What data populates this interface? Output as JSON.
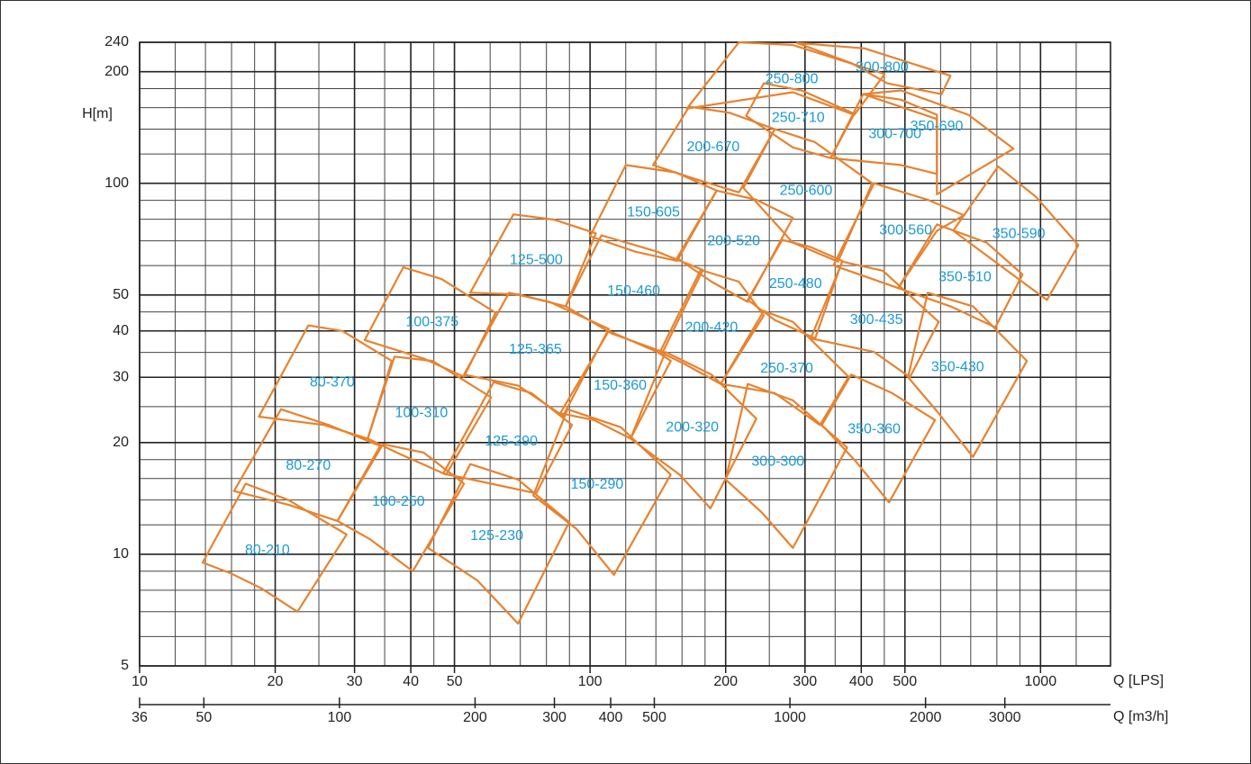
{
  "chart_data": {
    "type": "region-map",
    "y_label": "H[m]",
    "x_label": "Q  [LPS]",
    "x2_label": "Q  [m3/h]",
    "log_x": true,
    "log_y": true,
    "grid": true,
    "xlim": [
      10,
      1430
    ],
    "x2lim": [
      36,
      5148
    ],
    "ylim": [
      5,
      240
    ],
    "xticks": [
      10,
      20,
      30,
      40,
      50,
      100,
      200,
      300,
      400,
      500,
      1000
    ],
    "x2ticks": [
      36,
      50,
      100,
      200,
      300,
      400,
      500,
      1000,
      2000,
      3000
    ],
    "yticks": [
      5,
      10,
      20,
      30,
      40,
      50,
      100,
      200,
      240
    ],
    "xgrid": [
      12,
      14,
      16,
      18,
      25,
      35,
      45,
      60,
      70,
      80,
      90,
      120,
      140,
      160,
      180,
      250,
      350,
      450,
      600,
      700,
      800,
      900,
      1200
    ],
    "ygrid": [
      6,
      7,
      8,
      9,
      12,
      14,
      16,
      18,
      25,
      35,
      45,
      60,
      70,
      80,
      90,
      120,
      140,
      160,
      180
    ],
    "color": "#e8822e",
    "label_color": "#1a9ad6",
    "regions": [
      {
        "name": "80-210",
        "q": [
          13.8,
          17.2,
          21.4,
          28.8,
          22.4,
          18.6,
          15.9
        ],
        "h": [
          9.5,
          15.5,
          14.0,
          11.3,
          7.0,
          8.1,
          8.9
        ]
      },
      {
        "name": "80-270",
        "q": [
          16.2,
          20.6,
          26.3,
          34.2,
          27.5,
          21.4
        ],
        "h": [
          14.8,
          24.6,
          22.3,
          19.6,
          12.3,
          13.6
        ]
      },
      {
        "name": "80-370",
        "q": [
          18.4,
          23.7,
          28.2,
          36.3,
          32.1,
          25.7
        ],
        "h": [
          23.5,
          41.4,
          40.0,
          33.2,
          20.5,
          22.3
        ]
      },
      {
        "name": "100-250",
        "q": [
          27.5,
          34.7,
          42.7,
          52.5,
          40.4,
          32.4
        ],
        "h": [
          12.3,
          19.8,
          18.8,
          15.5,
          9.0,
          11.0
        ]
      },
      {
        "name": "100-310",
        "q": [
          32.1,
          36.8,
          44.7,
          60.3,
          47.9,
          37.2
        ],
        "h": [
          20.5,
          34.1,
          33.2,
          26.5,
          16.4,
          18.8
        ]
      },
      {
        "name": "100-375",
        "q": [
          31.6,
          38.5,
          46.8,
          61.7,
          52.5,
          42.7
        ],
        "h": [
          37.8,
          59.4,
          55.2,
          44.8,
          30.1,
          33.7
        ]
      },
      {
        "name": "125-230",
        "q": [
          43.7,
          54.2,
          69.2,
          89.9,
          69.2,
          56.2
        ],
        "h": [
          10.4,
          17.5,
          15.9,
          12.2,
          6.5,
          8.5
        ]
      },
      {
        "name": "125-290",
        "q": [
          47.2,
          61.1,
          74.1,
          91.2,
          75.9,
          60.3
        ],
        "h": [
          16.5,
          29.1,
          27.2,
          22.3,
          14.6,
          15.5
        ]
      },
      {
        "name": "125-365",
        "q": [
          52.5,
          66.1,
          81.3,
          110,
          87.1,
          69.2
        ],
        "h": [
          30.5,
          50.7,
          47.9,
          40.5,
          23.6,
          28.5
        ]
      },
      {
        "name": "125-500",
        "q": [
          54.2,
          67.6,
          83.2,
          103,
          88.3,
          69.2
        ],
        "h": [
          50.7,
          82.5,
          79.8,
          73.3,
          46.6,
          50.2
        ]
      },
      {
        "name": "150-290",
        "q": [
          74.8,
          89.1,
          117,
          151,
          113,
          93.3
        ],
        "h": [
          14.4,
          24.6,
          22.0,
          16.4,
          8.8,
          11.7
        ]
      },
      {
        "name": "150-360",
        "q": [
          85.9,
          110,
          141,
          151,
          123,
          102
        ],
        "h": [
          24.0,
          40.0,
          35.1,
          33.2,
          20.5,
          23.0
        ]
      },
      {
        "name": "150-460",
        "q": [
          88.3,
          106,
          141,
          178,
          145,
          112
        ],
        "h": [
          46.6,
          72.4,
          65.4,
          58.4,
          35.1,
          39.3
        ]
      },
      {
        "name": "150-605",
        "q": [
          100,
          120,
          155,
          191,
          156,
          126
        ],
        "h": [
          72.0,
          112,
          107,
          95.6,
          61.8,
          65.4
        ]
      },
      {
        "name": "200-320",
        "q": [
          123,
          147,
          186,
          234,
          185,
          158
        ],
        "h": [
          20.5,
          35.1,
          30.5,
          23.2,
          13.3,
          16.4
        ]
      },
      {
        "name": "200-420",
        "q": [
          143,
          176,
          214,
          243,
          195,
          162
        ],
        "h": [
          35.1,
          58.4,
          54.3,
          44.0,
          28.8,
          32.6
        ]
      },
      {
        "name": "200-520",
        "q": [
          156,
          191,
          234,
          282,
          224,
          186
        ],
        "h": [
          62.9,
          95.6,
          90.3,
          80.7,
          47.9,
          54.3
        ]
      },
      {
        "name": "200-670",
        "q": [
          138,
          166,
          204,
          257,
          214,
          170
        ],
        "h": [
          112,
          161,
          155,
          140,
          94.5,
          103
        ]
      },
      {
        "name": "250-480",
        "q": [
          224,
          267,
          309,
          363,
          316,
          257
        ],
        "h": [
          48.5,
          70.4,
          67.3,
          61.8,
          38.2,
          42.8
        ]
      },
      {
        "name": "250-370",
        "q": [
          195,
          243,
          282,
          375,
          324,
          257
        ],
        "h": [
          28.8,
          45.3,
          42.3,
          30.1,
          22.3,
          27.2
        ]
      },
      {
        "name": "250-600",
        "q": [
          219,
          257,
          316,
          423,
          355,
          282
        ],
        "h": [
          97.2,
          140,
          129,
          100,
          61.5,
          69.2
        ]
      },
      {
        "name": "250-710",
        "q": [
          222,
          243,
          295,
          386,
          342,
          282
        ],
        "h": [
          152,
          186,
          178,
          154,
          117,
          125
        ]
      },
      {
        "name": "250-800",
        "q": [
          164,
          214,
          282,
          451,
          386,
          282
        ],
        "h": [
          159,
          240,
          236,
          197,
          153,
          176
        ]
      },
      {
        "name": "300-800",
        "q": [
          288,
          407,
          631,
          603,
          457,
          380
        ],
        "h": [
          239,
          231,
          195,
          174,
          186,
          211
        ]
      },
      {
        "name": "300-700",
        "q": [
          342,
          404,
          490,
          589,
          589,
          490
        ],
        "h": [
          117,
          174,
          168,
          153,
          106,
          112
        ]
      },
      {
        "name": "350-690",
        "q": [
          404,
          490,
          692,
          871,
          589,
          589
        ],
        "h": [
          174,
          178,
          153,
          124,
          93.4,
          149
        ]
      },
      {
        "name": "300-560",
        "q": [
          347,
          427,
          562,
          676,
          589,
          483
        ],
        "h": [
          60.1,
          100,
          90.3,
          82.0,
          74.5,
          52.2
        ]
      },
      {
        "name": "300-435",
        "q": [
          309,
          363,
          447,
          594,
          513,
          427
        ],
        "h": [
          38.2,
          61.5,
          58.1,
          42.3,
          30.0,
          35.1
        ]
      },
      {
        "name": "300-300",
        "q": [
          200,
          224,
          282,
          372,
          282,
          240
        ],
        "h": [
          15.9,
          28.8,
          26.0,
          19.4,
          10.4,
          13.0
        ]
      },
      {
        "name": "350-360",
        "q": [
          327,
          380,
          468,
          583,
          461,
          389
        ],
        "h": [
          22.3,
          30.5,
          27.2,
          23.0,
          13.8,
          17.8
        ]
      },
      {
        "name": "350-510",
        "q": [
          483,
          589,
          759,
          912,
          794,
          631
        ],
        "h": [
          52.2,
          77.5,
          69.2,
          56.8,
          40.9,
          46.6
        ]
      },
      {
        "name": "350-430",
        "q": [
          508,
          562,
          708,
          933,
          708,
          589
        ],
        "h": [
          30.0,
          50.7,
          46.6,
          33.2,
          18.3,
          24.3
        ]
      },
      {
        "name": "350-590",
        "q": [
          640,
          805,
          977,
          1213,
          1033,
          813
        ],
        "h": [
          74.5,
          111,
          91.9,
          68.1,
          48.5,
          60.1
        ]
      }
    ]
  }
}
